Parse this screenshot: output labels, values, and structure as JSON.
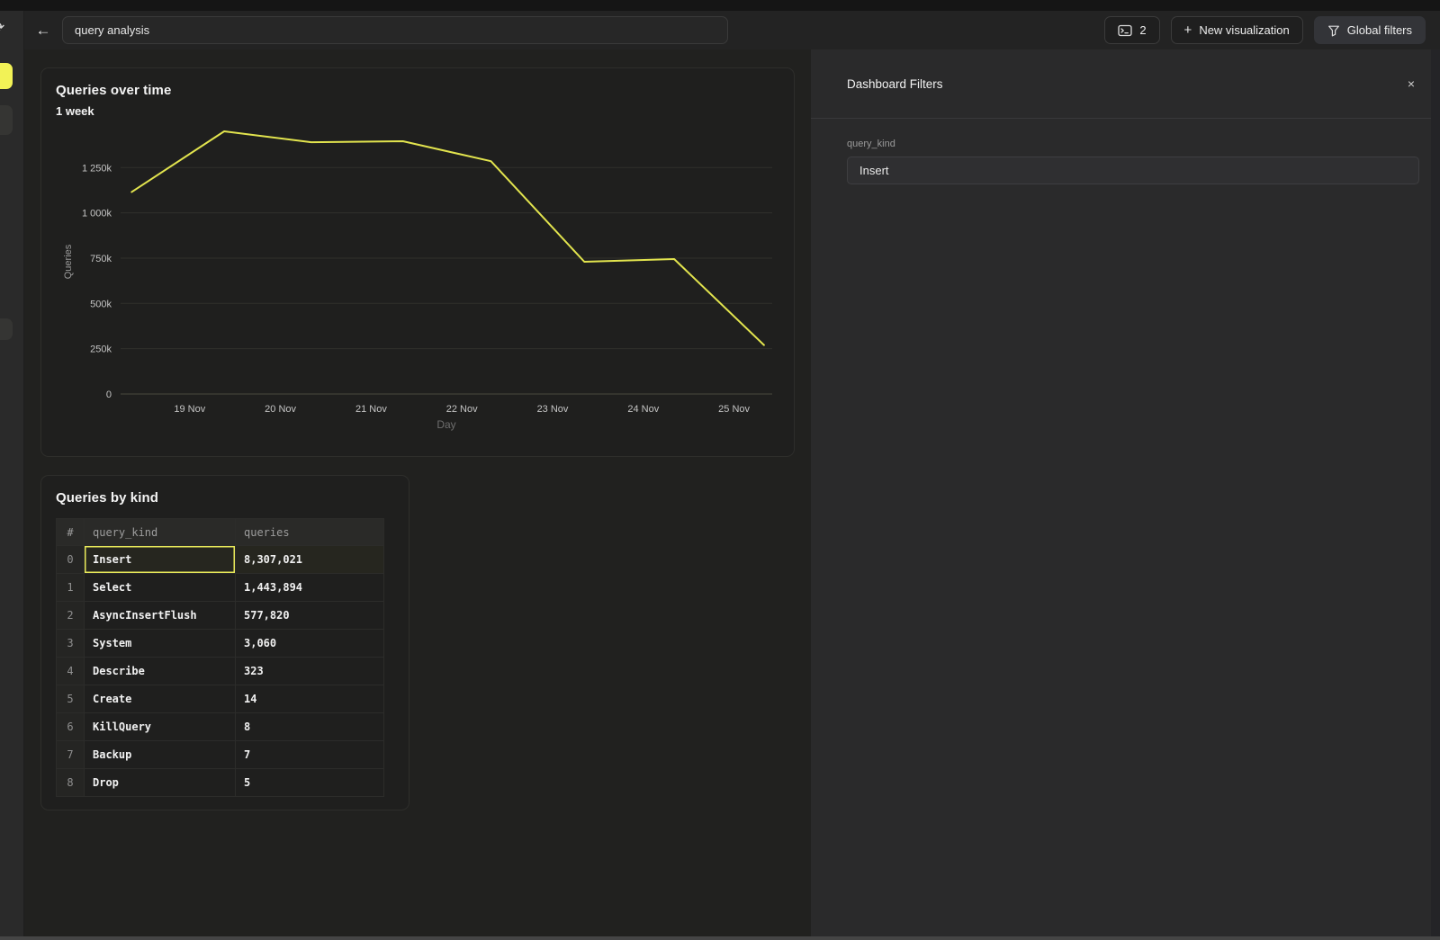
{
  "topbar": {
    "back_label": "←",
    "title_input": {
      "value": "query analysis"
    },
    "console_button": {
      "icon": "terminal-window-icon",
      "count": "2"
    },
    "new_viz_button": {
      "plus": "+",
      "label": "New visualization"
    },
    "global_filters_button": {
      "icon": "funnel-icon",
      "label": "Global filters"
    }
  },
  "sidebar": {
    "active_color": "#f2f256"
  },
  "chart_data": {
    "type": "line",
    "title": "Queries over time",
    "subtitle": "1 week",
    "xlabel": "Day",
    "ylabel": "Queries",
    "x_note": "day = days after 18 Nov",
    "x_ticks": [
      {
        "label": "19 Nov",
        "day": 1
      },
      {
        "label": "20 Nov",
        "day": 2
      },
      {
        "label": "21 Nov",
        "day": 3
      },
      {
        "label": "22 Nov",
        "day": 4
      },
      {
        "label": "23 Nov",
        "day": 5
      },
      {
        "label": "24 Nov",
        "day": 6
      },
      {
        "label": "25 Nov",
        "day": 7
      }
    ],
    "y_ticks": [
      {
        "label": "1 250k",
        "value": 1250000
      },
      {
        "label": "1 000k",
        "value": 1000000
      },
      {
        "label": "750k",
        "value": 750000
      },
      {
        "label": "500k",
        "value": 500000
      },
      {
        "label": "250k",
        "value": 250000
      },
      {
        "label": "0",
        "value": 0
      }
    ],
    "ylim": [
      0,
      1500000
    ],
    "grid": true,
    "legend": false,
    "series": [
      {
        "name": "Queries",
        "color": "#e2e44e",
        "points": [
          {
            "day": 0.36,
            "queries": 1115000
          },
          {
            "day": 1.38,
            "queries": 1450000
          },
          {
            "day": 2.34,
            "queries": 1390000
          },
          {
            "day": 3.35,
            "queries": 1395000
          },
          {
            "day": 4.32,
            "queries": 1285000
          },
          {
            "day": 5.35,
            "queries": 730000
          },
          {
            "day": 6.34,
            "queries": 745000
          },
          {
            "day": 7.33,
            "queries": 270000
          }
        ]
      }
    ]
  },
  "table_card": {
    "title": "Queries by kind",
    "columns": [
      "#",
      "query_kind",
      "queries"
    ],
    "rows": [
      {
        "index": "0",
        "query_kind": "Insert",
        "queries": "8,307,021",
        "selected": true
      },
      {
        "index": "1",
        "query_kind": "Select",
        "queries": "1,443,894",
        "selected": false
      },
      {
        "index": "2",
        "query_kind": "AsyncInsertFlush",
        "queries": "577,820",
        "selected": false
      },
      {
        "index": "3",
        "query_kind": "System",
        "queries": "3,060",
        "selected": false
      },
      {
        "index": "4",
        "query_kind": "Describe",
        "queries": "323",
        "selected": false
      },
      {
        "index": "5",
        "query_kind": "Create",
        "queries": "14",
        "selected": false
      },
      {
        "index": "6",
        "query_kind": "KillQuery",
        "queries": "8",
        "selected": false
      },
      {
        "index": "7",
        "query_kind": "Backup",
        "queries": "7",
        "selected": false
      },
      {
        "index": "8",
        "query_kind": "Drop",
        "queries": "5",
        "selected": false
      }
    ]
  },
  "filters_panel": {
    "title": "Dashboard Filters",
    "close_label": "×",
    "filters": [
      {
        "label": "query_kind",
        "value": "Insert"
      }
    ]
  },
  "colors": {
    "accent_yellow": "#e9ea5a",
    "chart_line": "#e2e44e"
  }
}
